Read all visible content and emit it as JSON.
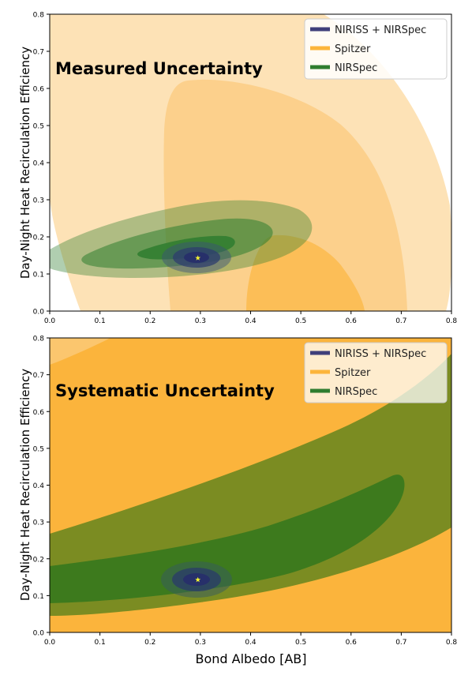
{
  "chart_data": [
    {
      "type": "contour",
      "title": "Measured Uncertainty",
      "xlabel": "",
      "ylabel": "Day-Night Heat Recirculation Efficiency",
      "xlim": [
        0.0,
        0.8
      ],
      "ylim": [
        0.0,
        0.8
      ],
      "x_ticks": [
        "0.0",
        "0.1",
        "0.2",
        "0.3",
        "0.4",
        "0.5",
        "0.6",
        "0.7",
        "0.8"
      ],
      "y_ticks": [
        "0.0",
        "0.1",
        "0.2",
        "0.3",
        "0.4",
        "0.5",
        "0.6",
        "0.7",
        "0.8"
      ],
      "legend": {
        "position": "top-right",
        "entries": [
          {
            "label": "NIRISS + NIRSpec",
            "color": "#3f3f7a"
          },
          {
            "label": "Spitzer",
            "color": "#fcb53b"
          },
          {
            "label": "NIRSpec",
            "color": "#2f7d2f"
          }
        ]
      },
      "best_fit": {
        "x": 0.295,
        "y": 0.143,
        "color": "#f6f430"
      }
    },
    {
      "type": "contour",
      "title": "Systematic Uncertainty",
      "xlabel": "Bond Albedo [AB]",
      "ylabel": "Day-Night Heat Recirculation Efficiency",
      "xlim": [
        0.0,
        0.8
      ],
      "ylim": [
        0.0,
        0.8
      ],
      "x_ticks": [
        "0.0",
        "0.1",
        "0.2",
        "0.3",
        "0.4",
        "0.5",
        "0.6",
        "0.7",
        "0.8"
      ],
      "y_ticks": [
        "0.0",
        "0.1",
        "0.2",
        "0.3",
        "0.4",
        "0.5",
        "0.6",
        "0.7",
        "0.8"
      ],
      "legend": {
        "position": "top-right",
        "entries": [
          {
            "label": "NIRISS + NIRSpec",
            "color": "#3f3f7a"
          },
          {
            "label": "Spitzer",
            "color": "#fcb53b"
          },
          {
            "label": "NIRSpec",
            "color": "#2f7d2f"
          }
        ]
      },
      "best_fit": {
        "x": 0.295,
        "y": 0.143,
        "color": "#f6f430"
      }
    }
  ]
}
